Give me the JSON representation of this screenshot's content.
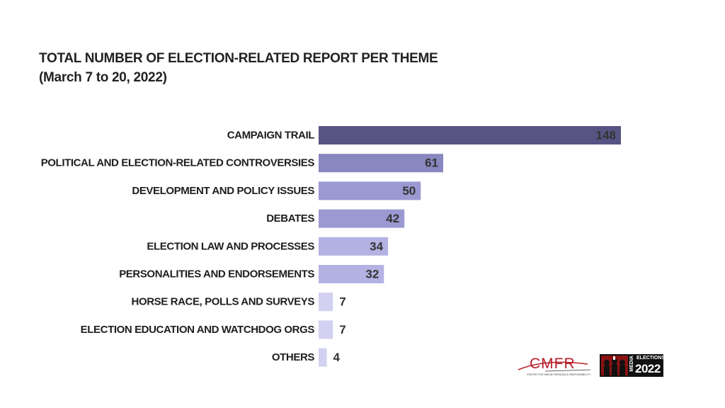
{
  "chart_data": {
    "type": "bar",
    "orientation": "horizontal",
    "title": "TOTAL NUMBER OF ELECTION-RELATED REPORT PER THEME",
    "subtitle": "(March 7 to 20, 2022)",
    "categories": [
      "CAMPAIGN TRAIL",
      "POLITICAL AND ELECTION-RELATED CONTROVERSIES",
      "DEVELOPMENT AND POLICY ISSUES",
      "DEBATES",
      "ELECTION LAW AND PROCESSES",
      "PERSONALITIES AND ENDORSEMENTS",
      "HORSE RACE, POLLS AND SURVEYS",
      "ELECTION EDUCATION AND WATCHDOG ORGS",
      "OTHERS"
    ],
    "values": [
      148,
      61,
      50,
      42,
      34,
      32,
      7,
      7,
      4
    ],
    "colors": [
      "#575484",
      "#8987bf",
      "#9b99d1",
      "#9b99d1",
      "#b4b2e3",
      "#b4b2e3",
      "#d2d1f1",
      "#d2d1f1",
      "#d2d1f1"
    ],
    "xlim": [
      0,
      148
    ],
    "grid": false,
    "legend": "none"
  },
  "logos": {
    "cmfr_name": "CMFR",
    "cmfr_tagline": "CENTER FOR MEDIA FREEDOM & RESPONSIBILITY",
    "media_word": "MEDIA",
    "elections_word": "ELECTIONS",
    "year": "2022"
  }
}
